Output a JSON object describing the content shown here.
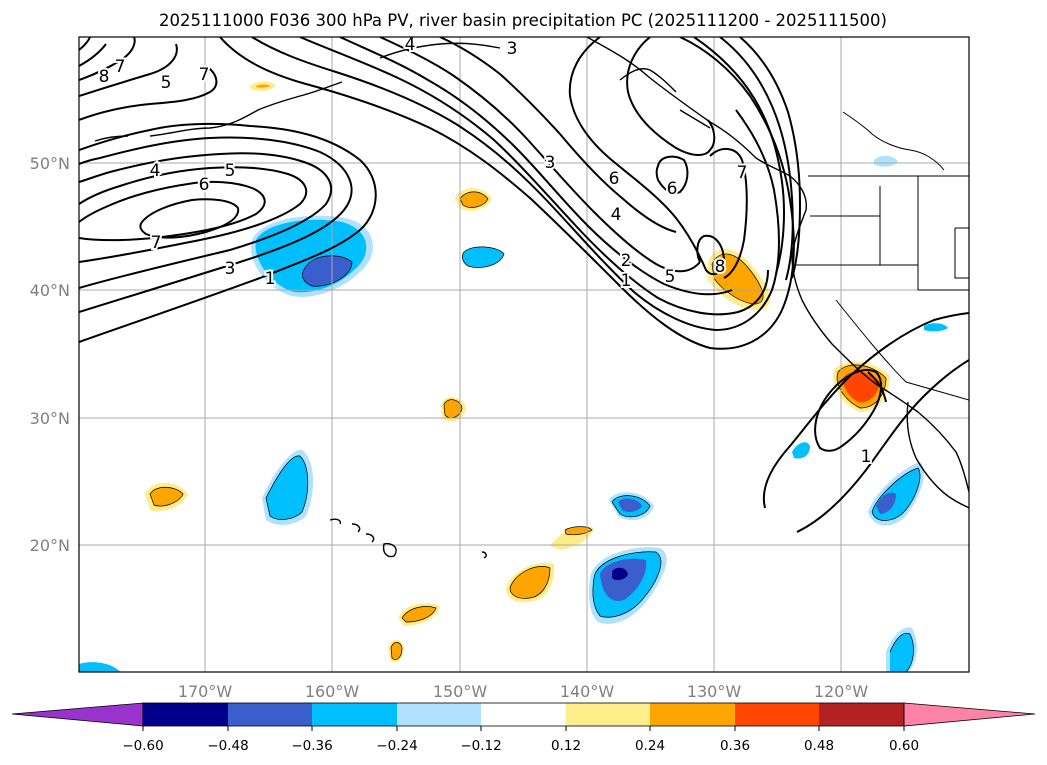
{
  "title": "2025111000 F036 300 hPa PV, river basin precipitation PC (2025111200 - 2025111500)",
  "map": {
    "lat_labels": [
      "50°N",
      "40°N",
      "30°N",
      "20°N"
    ],
    "lon_labels": [
      "170°W",
      "160°W",
      "150°W",
      "140°W",
      "130°W",
      "120°W"
    ],
    "pv_contour_labels": [
      "8",
      "7",
      "5",
      "7",
      "4",
      "5",
      "6",
      "7",
      "3",
      "1",
      "4",
      "3",
      "3",
      "6",
      "6",
      "4",
      "2",
      "1",
      "5",
      "8",
      "7",
      "1"
    ]
  },
  "colorbar": {
    "ticks": [
      "−0.60",
      "−0.48",
      "−0.36",
      "−0.24",
      "−0.12",
      "0.12",
      "0.24",
      "0.36",
      "0.48",
      "0.60"
    ],
    "colors": [
      "#9a32cd",
      "#00008b",
      "#3a5fcd",
      "#00bfff",
      "#b0e2ff",
      "#ffffff",
      "#ffec8b",
      "#ffa500",
      "#ff4500",
      "#b22222",
      "#ff82ab"
    ]
  }
}
